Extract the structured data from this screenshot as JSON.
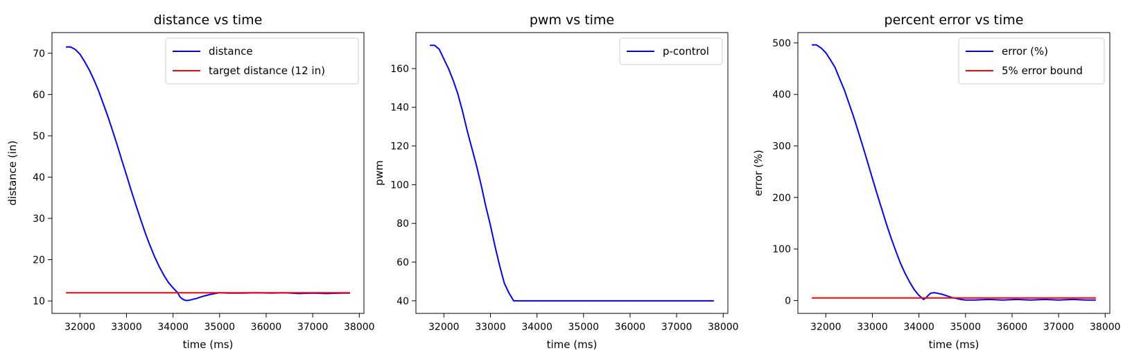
{
  "chart_data": [
    {
      "type": "line",
      "title": "distance vs time",
      "xlabel": "time (ms)",
      "ylabel": "distance (in)",
      "xlim": [
        31400,
        38100
      ],
      "ylim": [
        7,
        75
      ],
      "xticks": [
        32000,
        33000,
        34000,
        35000,
        36000,
        37000,
        38000
      ],
      "yticks": [
        10,
        20,
        30,
        40,
        50,
        60,
        70
      ],
      "grid": false,
      "legend_position": "top-right",
      "series": [
        {
          "name": "distance",
          "color": "#0000ff",
          "x": [
            31700,
            31800,
            31900,
            32000,
            32100,
            32200,
            32300,
            32400,
            32500,
            32600,
            32700,
            32800,
            32900,
            33000,
            33100,
            33200,
            33300,
            33400,
            33500,
            33600,
            33700,
            33800,
            33900,
            34000,
            34100,
            34150,
            34200,
            34250,
            34300,
            34350,
            34400,
            34450,
            34500,
            34600,
            34700,
            34800,
            34900,
            35000,
            35200,
            35500,
            35800,
            36100,
            36400,
            36700,
            37000,
            37300,
            37600,
            37800
          ],
          "values": [
            71.5,
            71.5,
            70.9,
            69.8,
            68.0,
            66.0,
            63.6,
            60.9,
            57.8,
            54.7,
            51.3,
            47.8,
            44.1,
            40.5,
            36.8,
            33.3,
            29.9,
            26.6,
            23.6,
            20.8,
            18.4,
            16.3,
            14.5,
            13.2,
            12.0,
            11.0,
            10.5,
            10.2,
            10.1,
            10.2,
            10.3,
            10.5,
            10.6,
            11.0,
            11.3,
            11.6,
            11.8,
            12.0,
            11.9,
            11.9,
            12.0,
            11.9,
            12.0,
            11.8,
            11.9,
            11.8,
            11.9,
            11.9
          ]
        },
        {
          "name": "target distance (12 in)",
          "color": "#ff0000",
          "x": [
            31700,
            37800
          ],
          "values": [
            12,
            12
          ]
        }
      ]
    },
    {
      "type": "line",
      "title": "pwm vs time",
      "xlabel": "time (ms)",
      "ylabel": "pwm",
      "xlim": [
        31400,
        38100
      ],
      "ylim": [
        33.5,
        178.6
      ],
      "xticks": [
        32000,
        33000,
        34000,
        35000,
        36000,
        37000,
        38000
      ],
      "yticks": [
        40,
        60,
        80,
        100,
        120,
        140,
        160
      ],
      "grid": false,
      "legend_position": "top-right",
      "series": [
        {
          "name": "p-control",
          "color": "#0000ff",
          "x": [
            31700,
            31800,
            31900,
            32000,
            32100,
            32200,
            32300,
            32400,
            32500,
            32600,
            32700,
            32800,
            32900,
            33000,
            33100,
            33200,
            33300,
            33400,
            33500,
            35000,
            37800
          ],
          "values": [
            172,
            172,
            170,
            165,
            160,
            154,
            147,
            138,
            128,
            119,
            110,
            100,
            89,
            79,
            68,
            58,
            49,
            44,
            40,
            40,
            40
          ]
        }
      ]
    },
    {
      "type": "line",
      "title": "percent error vs time",
      "xlabel": "time (ms)",
      "ylabel": "error (%)",
      "xlim": [
        31400,
        38100
      ],
      "ylim": [
        -25,
        520
      ],
      "xticks": [
        32000,
        33000,
        34000,
        35000,
        36000,
        37000,
        38000
      ],
      "yticks": [
        0,
        100,
        200,
        300,
        400,
        500
      ],
      "grid": false,
      "legend_position": "top-right",
      "series": [
        {
          "name": "error (%)",
          "color": "#0000ff",
          "x": [
            31700,
            31800,
            31900,
            32000,
            32100,
            32200,
            32300,
            32400,
            32500,
            32600,
            32700,
            32800,
            32900,
            33000,
            33100,
            33200,
            33300,
            33400,
            33500,
            33600,
            33700,
            33800,
            33900,
            34000,
            34100,
            34150,
            34200,
            34250,
            34300,
            34350,
            34400,
            34450,
            34500,
            34600,
            34700,
            34800,
            34900,
            35000,
            35200,
            35500,
            35800,
            36100,
            36400,
            36700,
            37000,
            37300,
            37600,
            37800
          ],
          "values": [
            496,
            496,
            490,
            481,
            467,
            452,
            430,
            408,
            382,
            356,
            327,
            298,
            268,
            237,
            207,
            178,
            149,
            122,
            97,
            73,
            53,
            36,
            21,
            10,
            2,
            5,
            10,
            14,
            15,
            15,
            14,
            13,
            12,
            9,
            6,
            4,
            2,
            1,
            1,
            2,
            1,
            2,
            1,
            2,
            1,
            2,
            1,
            1
          ]
        },
        {
          "name": "5% error bound",
          "color": "#ff0000",
          "x": [
            31700,
            37800
          ],
          "values": [
            5,
            5
          ]
        }
      ]
    }
  ]
}
